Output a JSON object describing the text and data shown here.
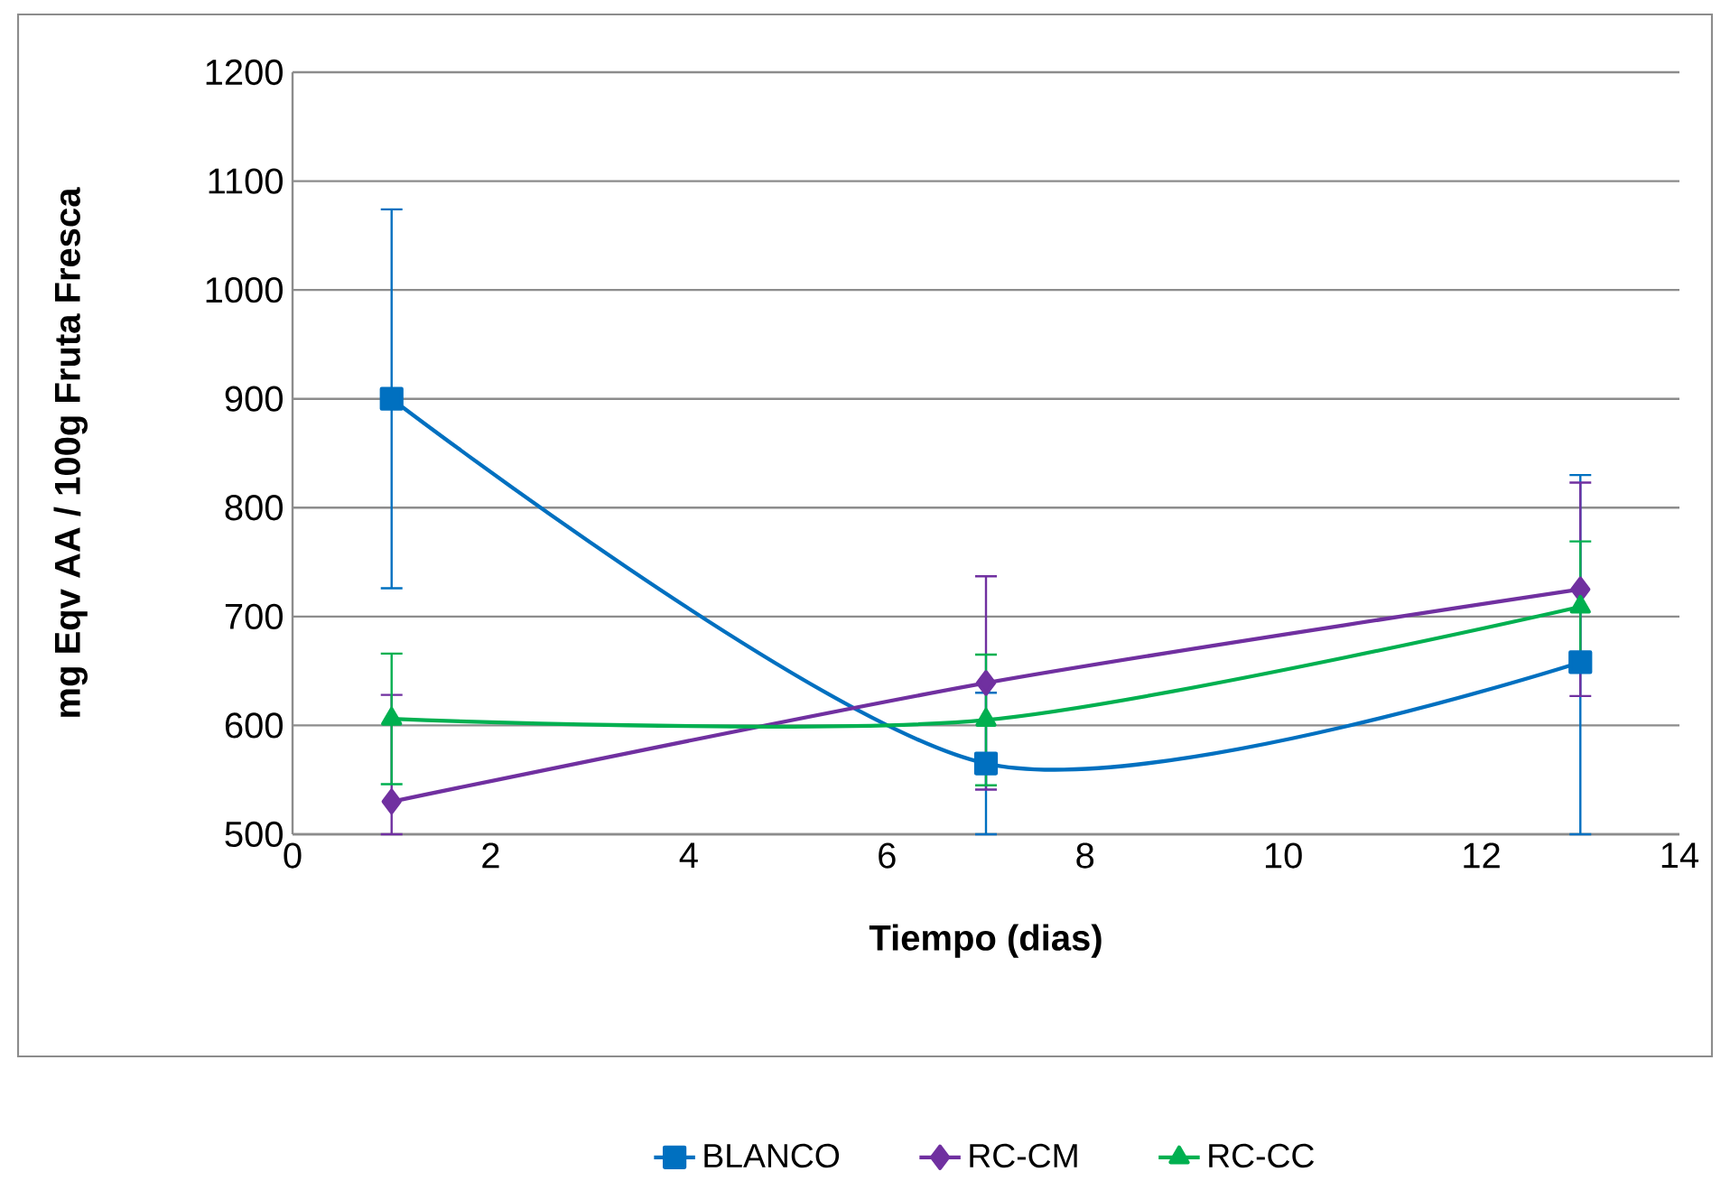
{
  "chart_data": {
    "type": "line",
    "xlabel": "Tiempo (dias)",
    "ylabel": "mg Eqv AA / 100g Fruta Fresca",
    "x": [
      1,
      7,
      13
    ],
    "xlim": [
      0,
      14
    ],
    "xticks": [
      0,
      2,
      4,
      6,
      8,
      10,
      12,
      14
    ],
    "ylim": [
      500,
      1200
    ],
    "yticks": [
      500,
      600,
      700,
      800,
      900,
      1000,
      1100,
      1200
    ],
    "grid": "y",
    "legend": "bottom",
    "series": [
      {
        "name": "BLANCO",
        "color": "#0070c0",
        "marker": "square",
        "values": [
          900,
          565,
          658
        ],
        "errors": [
          174,
          65,
          [
            500,
            830
          ]
        ]
      },
      {
        "name": "RC-CM",
        "color": "#7030a0",
        "marker": "diamond",
        "values": [
          530,
          639,
          725
        ],
        "errors": [
          [
            500,
            628
          ],
          98,
          98
        ]
      },
      {
        "name": "RC-CC",
        "color": "#00b050",
        "marker": "triangle",
        "values": [
          606,
          605,
          709
        ],
        "errors": [
          60,
          60,
          60
        ]
      }
    ]
  }
}
